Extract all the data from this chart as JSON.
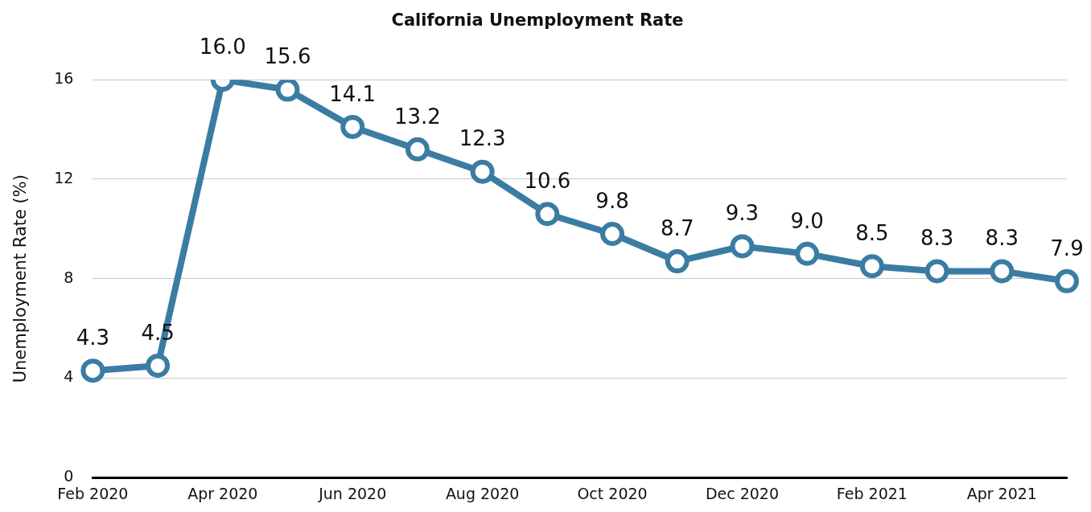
{
  "chart_data": {
    "type": "line",
    "title": "California Unemployment Rate",
    "ylabel": "Unemployment Rate (%)",
    "categories": [
      "Feb 2020",
      null,
      "Apr 2020",
      null,
      "Jun 2020",
      null,
      "Aug 2020",
      null,
      "Oct 2020",
      null,
      "Dec 2020",
      null,
      "Feb 2021",
      null,
      "Apr 2021",
      null
    ],
    "values": [
      4.3,
      4.5,
      16.0,
      15.6,
      14.1,
      13.2,
      12.3,
      10.6,
      9.8,
      8.7,
      9.3,
      9.0,
      8.5,
      8.3,
      8.3,
      7.9
    ],
    "value_labels": [
      "4.3",
      "4.5",
      "16.0",
      "15.6",
      "14.1",
      "13.2",
      "12.3",
      "10.6",
      "9.8",
      "8.7",
      "9.3",
      "9.0",
      "8.5",
      "8.3",
      "8.3",
      "7.9"
    ],
    "color": "#3b7ca3",
    "ylim": [
      0,
      16
    ],
    "yticks": [
      0,
      4,
      8,
      12,
      16
    ],
    "grid": "y",
    "marker": "circle",
    "line_style": "solid",
    "legend": false
  }
}
